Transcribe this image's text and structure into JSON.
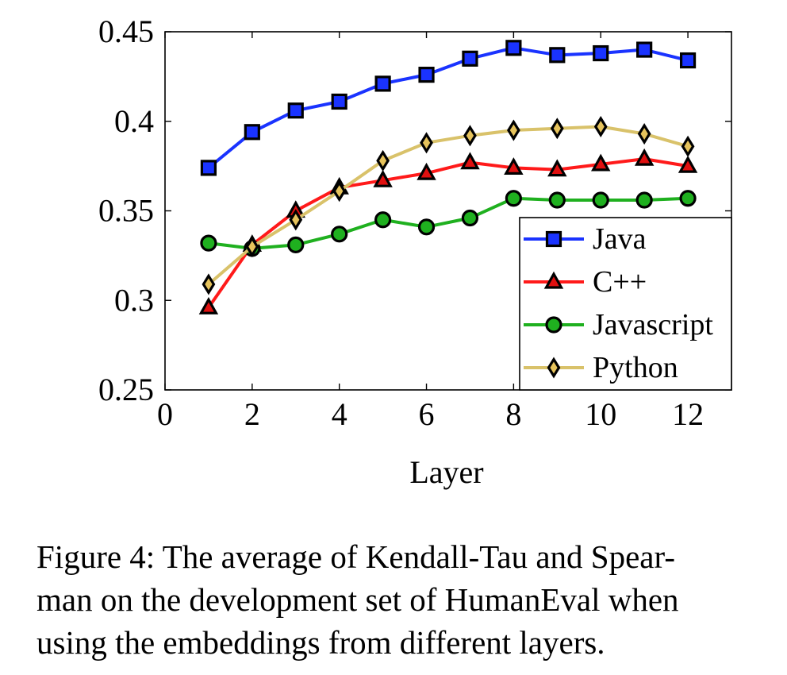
{
  "chart_data": {
    "type": "line",
    "xlabel": "Layer",
    "ylabel": "",
    "title": "",
    "xlim": [
      0,
      13
    ],
    "ylim": [
      0.25,
      0.45
    ],
    "x_ticks": [
      0,
      2,
      4,
      6,
      8,
      10,
      12
    ],
    "x_tick_labels": [
      "0",
      "2",
      "4",
      "6",
      "8",
      "10",
      "12"
    ],
    "y_ticks": [
      0.25,
      0.3,
      0.35,
      0.4,
      0.45
    ],
    "y_tick_labels": [
      "0.25",
      "0.3",
      "0.35",
      "0.4",
      "0.45"
    ],
    "grid": false,
    "legend_position": "bottom-right",
    "x": [
      1,
      2,
      3,
      4,
      5,
      6,
      7,
      8,
      9,
      10,
      11,
      12
    ],
    "series": [
      {
        "name": "Java",
        "color": "#1a33ff",
        "marker": "square",
        "marker_fill": "#1a33ff",
        "values": [
          0.374,
          0.394,
          0.406,
          0.411,
          0.421,
          0.426,
          0.435,
          0.441,
          0.437,
          0.438,
          0.44,
          0.434
        ]
      },
      {
        "name": "C++",
        "color": "#ff1a1a",
        "marker": "triangle",
        "marker_fill": "#e01010",
        "values": [
          0.296,
          0.331,
          0.35,
          0.363,
          0.367,
          0.371,
          0.377,
          0.374,
          0.373,
          0.376,
          0.379,
          0.375
        ]
      },
      {
        "name": "Javascript",
        "color": "#1fb01f",
        "marker": "circle",
        "marker_fill": "#1fb01f",
        "values": [
          0.332,
          0.329,
          0.331,
          0.337,
          0.345,
          0.341,
          0.346,
          0.357,
          0.356,
          0.356,
          0.356,
          0.357
        ]
      },
      {
        "name": "Python",
        "color": "#d9c26a",
        "marker": "diamond",
        "marker_fill": "#e6c35c",
        "values": [
          0.309,
          0.33,
          0.345,
          0.361,
          0.378,
          0.388,
          0.392,
          0.395,
          0.396,
          0.397,
          0.393,
          0.386
        ]
      }
    ]
  },
  "caption": "Figure 4: The average of Kendall-Tau and Spear-\nman on the development set of HumanEval when\nusing the embeddings from different layers."
}
